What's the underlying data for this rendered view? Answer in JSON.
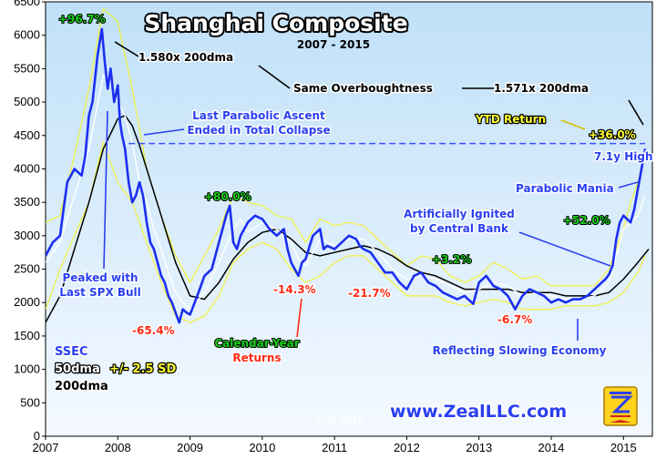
{
  "colors": {
    "background": "#ffffff",
    "plot_background_top": "#bfe0f8",
    "plot_background_bottom": "#f4f9ff",
    "ssec_line": "#1c2ff0",
    "dma50_line": "#ffffff",
    "sd_bands": "#f2f23a",
    "dma200_line": "#000000",
    "dashed_high": "#3a50ff",
    "green_label": "#18d018",
    "red_label": "#ff2a14",
    "title_fill": "#ffffff"
  },
  "chart_data": {
    "type": "line",
    "title": "Shanghai Composite",
    "subtitle": "2007 - 2015",
    "x_ticks": [
      "2007",
      "2008",
      "2009",
      "2010",
      "2011",
      "2012",
      "2013",
      "2014",
      "2015"
    ],
    "y_ticks": [
      "0",
      "500",
      "1000",
      "1500",
      "2000",
      "2500",
      "3000",
      "3500",
      "4000",
      "4500",
      "5000",
      "5500",
      "6000",
      "6500"
    ],
    "ylim": [
      0,
      6500
    ],
    "xlim": [
      2007.0,
      2015.4
    ],
    "grid": false,
    "legend_position": "bottom-left",
    "date_label": "4.22.2015",
    "website": "www.ZealLLC.com",
    "legend": {
      "ssec": "SSEC",
      "dma50": "50dma",
      "bands": "+/- 2.5 SD",
      "dma200": "200dma"
    },
    "series": [
      {
        "name": "SSEC",
        "x": [
          2007.0,
          2007.1,
          2007.2,
          2007.25,
          2007.3,
          2007.4,
          2007.5,
          2007.55,
          2007.6,
          2007.65,
          2007.72,
          2007.78,
          2007.82,
          2007.86,
          2007.9,
          2007.95,
          2008.0,
          2008.03,
          2008.06,
          2008.1,
          2008.15,
          2008.2,
          2008.25,
          2008.3,
          2008.35,
          2008.4,
          2008.45,
          2008.5,
          2008.55,
          2008.6,
          2008.65,
          2008.7,
          2008.75,
          2008.8,
          2008.85,
          2008.9,
          2008.95,
          2009.0,
          2009.1,
          2009.2,
          2009.3,
          2009.4,
          2009.5,
          2009.55,
          2009.6,
          2009.65,
          2009.7,
          2009.8,
          2009.9,
          2010.0,
          2010.1,
          2010.2,
          2010.3,
          2010.35,
          2010.4,
          2010.45,
          2010.5,
          2010.55,
          2010.6,
          2010.7,
          2010.8,
          2010.85,
          2010.9,
          2011.0,
          2011.1,
          2011.2,
          2011.3,
          2011.35,
          2011.4,
          2011.5,
          2011.6,
          2011.7,
          2011.8,
          2011.9,
          2012.0,
          2012.1,
          2012.2,
          2012.3,
          2012.4,
          2012.5,
          2012.6,
          2012.7,
          2012.8,
          2012.92,
          2013.0,
          2013.1,
          2013.2,
          2013.3,
          2013.4,
          2013.45,
          2013.5,
          2013.6,
          2013.7,
          2013.8,
          2013.9,
          2014.0,
          2014.1,
          2014.2,
          2014.3,
          2014.4,
          2014.5,
          2014.6,
          2014.7,
          2014.75,
          2014.8,
          2014.85,
          2014.9,
          2014.95,
          2015.0,
          2015.05,
          2015.1,
          2015.15,
          2015.2,
          2015.25,
          2015.3
        ],
        "y": [
          2700,
          2900,
          3000,
          3400,
          3800,
          4000,
          3900,
          4200,
          4800,
          5000,
          5700,
          6092,
          5600,
          5200,
          5500,
          5000,
          5250,
          4700,
          4500,
          4300,
          3800,
          3500,
          3600,
          3800,
          3600,
          3200,
          2900,
          2800,
          2600,
          2400,
          2300,
          2100,
          2000,
          1850,
          1700,
          1900,
          1850,
          1820,
          2100,
          2400,
          2500,
          2900,
          3300,
          3450,
          2900,
          2800,
          3000,
          3200,
          3300,
          3250,
          3100,
          3000,
          3100,
          2800,
          2600,
          2500,
          2400,
          2600,
          2650,
          3000,
          3100,
          2800,
          2850,
          2800,
          2900,
          3000,
          2950,
          2850,
          2800,
          2750,
          2600,
          2450,
          2450,
          2300,
          2200,
          2400,
          2450,
          2300,
          2250,
          2150,
          2100,
          2050,
          2100,
          1980,
          2300,
          2400,
          2250,
          2200,
          2100,
          2000,
          1900,
          2100,
          2200,
          2150,
          2100,
          2000,
          2050,
          2000,
          2050,
          2050,
          2100,
          2200,
          2300,
          2350,
          2420,
          2550,
          2950,
          3200,
          3300,
          3250,
          3200,
          3400,
          3700,
          4000,
          4300
        ]
      },
      {
        "name": "50dma",
        "x": [
          2007.0,
          2007.2,
          2007.4,
          2007.6,
          2007.8,
          2007.9,
          2008.0,
          2008.1,
          2008.2,
          2008.3,
          2008.4,
          2008.5,
          2008.6,
          2008.7,
          2008.8,
          2008.9,
          2009.0,
          2009.2,
          2009.4,
          2009.6,
          2009.7,
          2009.8,
          2010.0,
          2010.2,
          2010.4,
          2010.5,
          2010.6,
          2010.7,
          2010.8,
          2011.0,
          2011.2,
          2011.4,
          2011.6,
          2011.8,
          2012.0,
          2012.2,
          2012.4,
          2012.6,
          2012.8,
          2013.0,
          2013.2,
          2013.4,
          2013.6,
          2013.8,
          2014.0,
          2014.2,
          2014.4,
          2014.6,
          2014.8,
          2014.9,
          2015.0,
          2015.1,
          2015.2,
          2015.3
        ],
        "y": [
          2600,
          2900,
          3600,
          4300,
          5400,
          5300,
          5000,
          4800,
          4400,
          3800,
          3500,
          3100,
          2800,
          2450,
          2150,
          2000,
          1900,
          2150,
          2600,
          3100,
          3250,
          3050,
          3200,
          3100,
          2900,
          2650,
          2550,
          2750,
          2950,
          2850,
          2950,
          2950,
          2750,
          2500,
          2350,
          2400,
          2350,
          2250,
          2150,
          2200,
          2300,
          2250,
          2100,
          2150,
          2100,
          2050,
          2050,
          2100,
          2300,
          2700,
          3100,
          3200,
          3300,
          3600
        ]
      },
      {
        "name": "200dma",
        "x": [
          2007.0,
          2007.2,
          2007.4,
          2007.6,
          2007.8,
          2008.0,
          2008.1,
          2008.2,
          2008.3,
          2008.4,
          2008.6,
          2008.8,
          2009.0,
          2009.2,
          2009.4,
          2009.6,
          2009.8,
          2010.0,
          2010.2,
          2010.4,
          2010.6,
          2010.8,
          2011.0,
          2011.2,
          2011.4,
          2011.6,
          2011.8,
          2012.0,
          2012.2,
          2012.4,
          2012.6,
          2012.8,
          2013.0,
          2013.2,
          2013.4,
          2013.6,
          2013.8,
          2014.0,
          2014.2,
          2014.4,
          2014.6,
          2014.8,
          2015.0,
          2015.2,
          2015.35
        ],
        "y": [
          1700,
          2100,
          2800,
          3500,
          4300,
          4750,
          4800,
          4650,
          4350,
          4000,
          3300,
          2600,
          2100,
          2050,
          2300,
          2650,
          2900,
          3050,
          3100,
          2950,
          2750,
          2700,
          2750,
          2800,
          2850,
          2800,
          2700,
          2550,
          2450,
          2400,
          2300,
          2200,
          2200,
          2200,
          2200,
          2150,
          2150,
          2150,
          2100,
          2100,
          2100,
          2150,
          2350,
          2600,
          2800
        ]
      },
      {
        "name": "+2.5 SD",
        "x": [
          2007.0,
          2007.2,
          2007.4,
          2007.6,
          2007.8,
          2008.0,
          2008.2,
          2008.4,
          2008.6,
          2008.8,
          2009.0,
          2009.2,
          2009.4,
          2009.6,
          2009.8,
          2010.0,
          2010.2,
          2010.4,
          2010.6,
          2010.8,
          2011.0,
          2011.2,
          2011.4,
          2011.6,
          2011.8,
          2012.0,
          2012.2,
          2012.4,
          2012.6,
          2012.8,
          2013.0,
          2013.2,
          2013.4,
          2013.6,
          2013.8,
          2014.0,
          2014.2,
          2014.4,
          2014.6,
          2014.8,
          2015.0,
          2015.1,
          2015.2,
          2015.3
        ],
        "y": [
          3200,
          3300,
          4200,
          5200,
          6400,
          6200,
          5200,
          4000,
          3300,
          2700,
          2300,
          2700,
          3100,
          3600,
          3500,
          3450,
          3300,
          3250,
          2900,
          3250,
          3150,
          3200,
          3150,
          2950,
          2750,
          2550,
          2700,
          2650,
          2400,
          2300,
          2400,
          2600,
          2500,
          2350,
          2400,
          2250,
          2250,
          2250,
          2250,
          2500,
          3100,
          3500,
          3800,
          4250
        ]
      },
      {
        "name": "-2.5 SD",
        "x": [
          2007.0,
          2007.2,
          2007.4,
          2007.6,
          2007.8,
          2008.0,
          2008.2,
          2008.4,
          2008.6,
          2008.8,
          2009.0,
          2009.2,
          2009.4,
          2009.6,
          2009.8,
          2010.0,
          2010.2,
          2010.4,
          2010.6,
          2010.8,
          2011.0,
          2011.2,
          2011.4,
          2011.6,
          2011.8,
          2012.0,
          2012.2,
          2012.4,
          2012.6,
          2012.8,
          2013.0,
          2013.2,
          2013.4,
          2013.6,
          2013.8,
          2014.0,
          2014.2,
          2014.4,
          2014.6,
          2014.8,
          2015.0,
          2015.1,
          2015.2,
          2015.3
        ],
        "y": [
          1900,
          2500,
          3000,
          3500,
          4400,
          3800,
          3500,
          2900,
          2300,
          1800,
          1700,
          1800,
          2100,
          2600,
          2800,
          2900,
          2800,
          2500,
          2300,
          2400,
          2600,
          2700,
          2700,
          2500,
          2300,
          2100,
          2100,
          2100,
          2000,
          1950,
          2000,
          2050,
          2000,
          1900,
          1900,
          1900,
          1950,
          1950,
          1950,
          2000,
          2150,
          2300,
          2450,
          2700
        ]
      }
    ],
    "high_line": {
      "value": 4380,
      "x_start": 2008.15,
      "x_end": 2015.3
    },
    "annotations": [
      {
        "text": "+96.7%",
        "color": "green"
      },
      {
        "text": "1.580x 200dma",
        "color": "black"
      },
      {
        "text": "Same Overboughtness",
        "color": "black"
      },
      {
        "text": "1.571x 200dma",
        "color": "black"
      },
      {
        "text": "Last Parabolic Ascent",
        "color": "blue"
      },
      {
        "text": "Ended in Total Collapse",
        "color": "blue"
      },
      {
        "text": "YTD Return",
        "color": "yellow"
      },
      {
        "text": "+36.0%",
        "color": "yellow"
      },
      {
        "text": "7.1y High",
        "color": "blue"
      },
      {
        "text": "Parabolic Mania",
        "color": "blue"
      },
      {
        "text": "+80.0%",
        "color": "green"
      },
      {
        "text": "Artificially Ignited",
        "color": "blue"
      },
      {
        "text": "by Central Bank",
        "color": "blue"
      },
      {
        "text": "+52.0%",
        "color": "green"
      },
      {
        "text": "+3.2%",
        "color": "green"
      },
      {
        "text": "Peaked with",
        "color": "blue"
      },
      {
        "text": "Last SPX Bull",
        "color": "blue"
      },
      {
        "text": "-14.3%",
        "color": "red"
      },
      {
        "text": "-21.7%",
        "color": "red"
      },
      {
        "text": "-65.4%",
        "color": "red"
      },
      {
        "text": "-6.7%",
        "color": "red"
      },
      {
        "text": "Calendar-Year",
        "color": "green"
      },
      {
        "text": "Returns",
        "color": "red"
      },
      {
        "text": "Reflecting Slowing Economy",
        "color": "blue"
      }
    ]
  }
}
